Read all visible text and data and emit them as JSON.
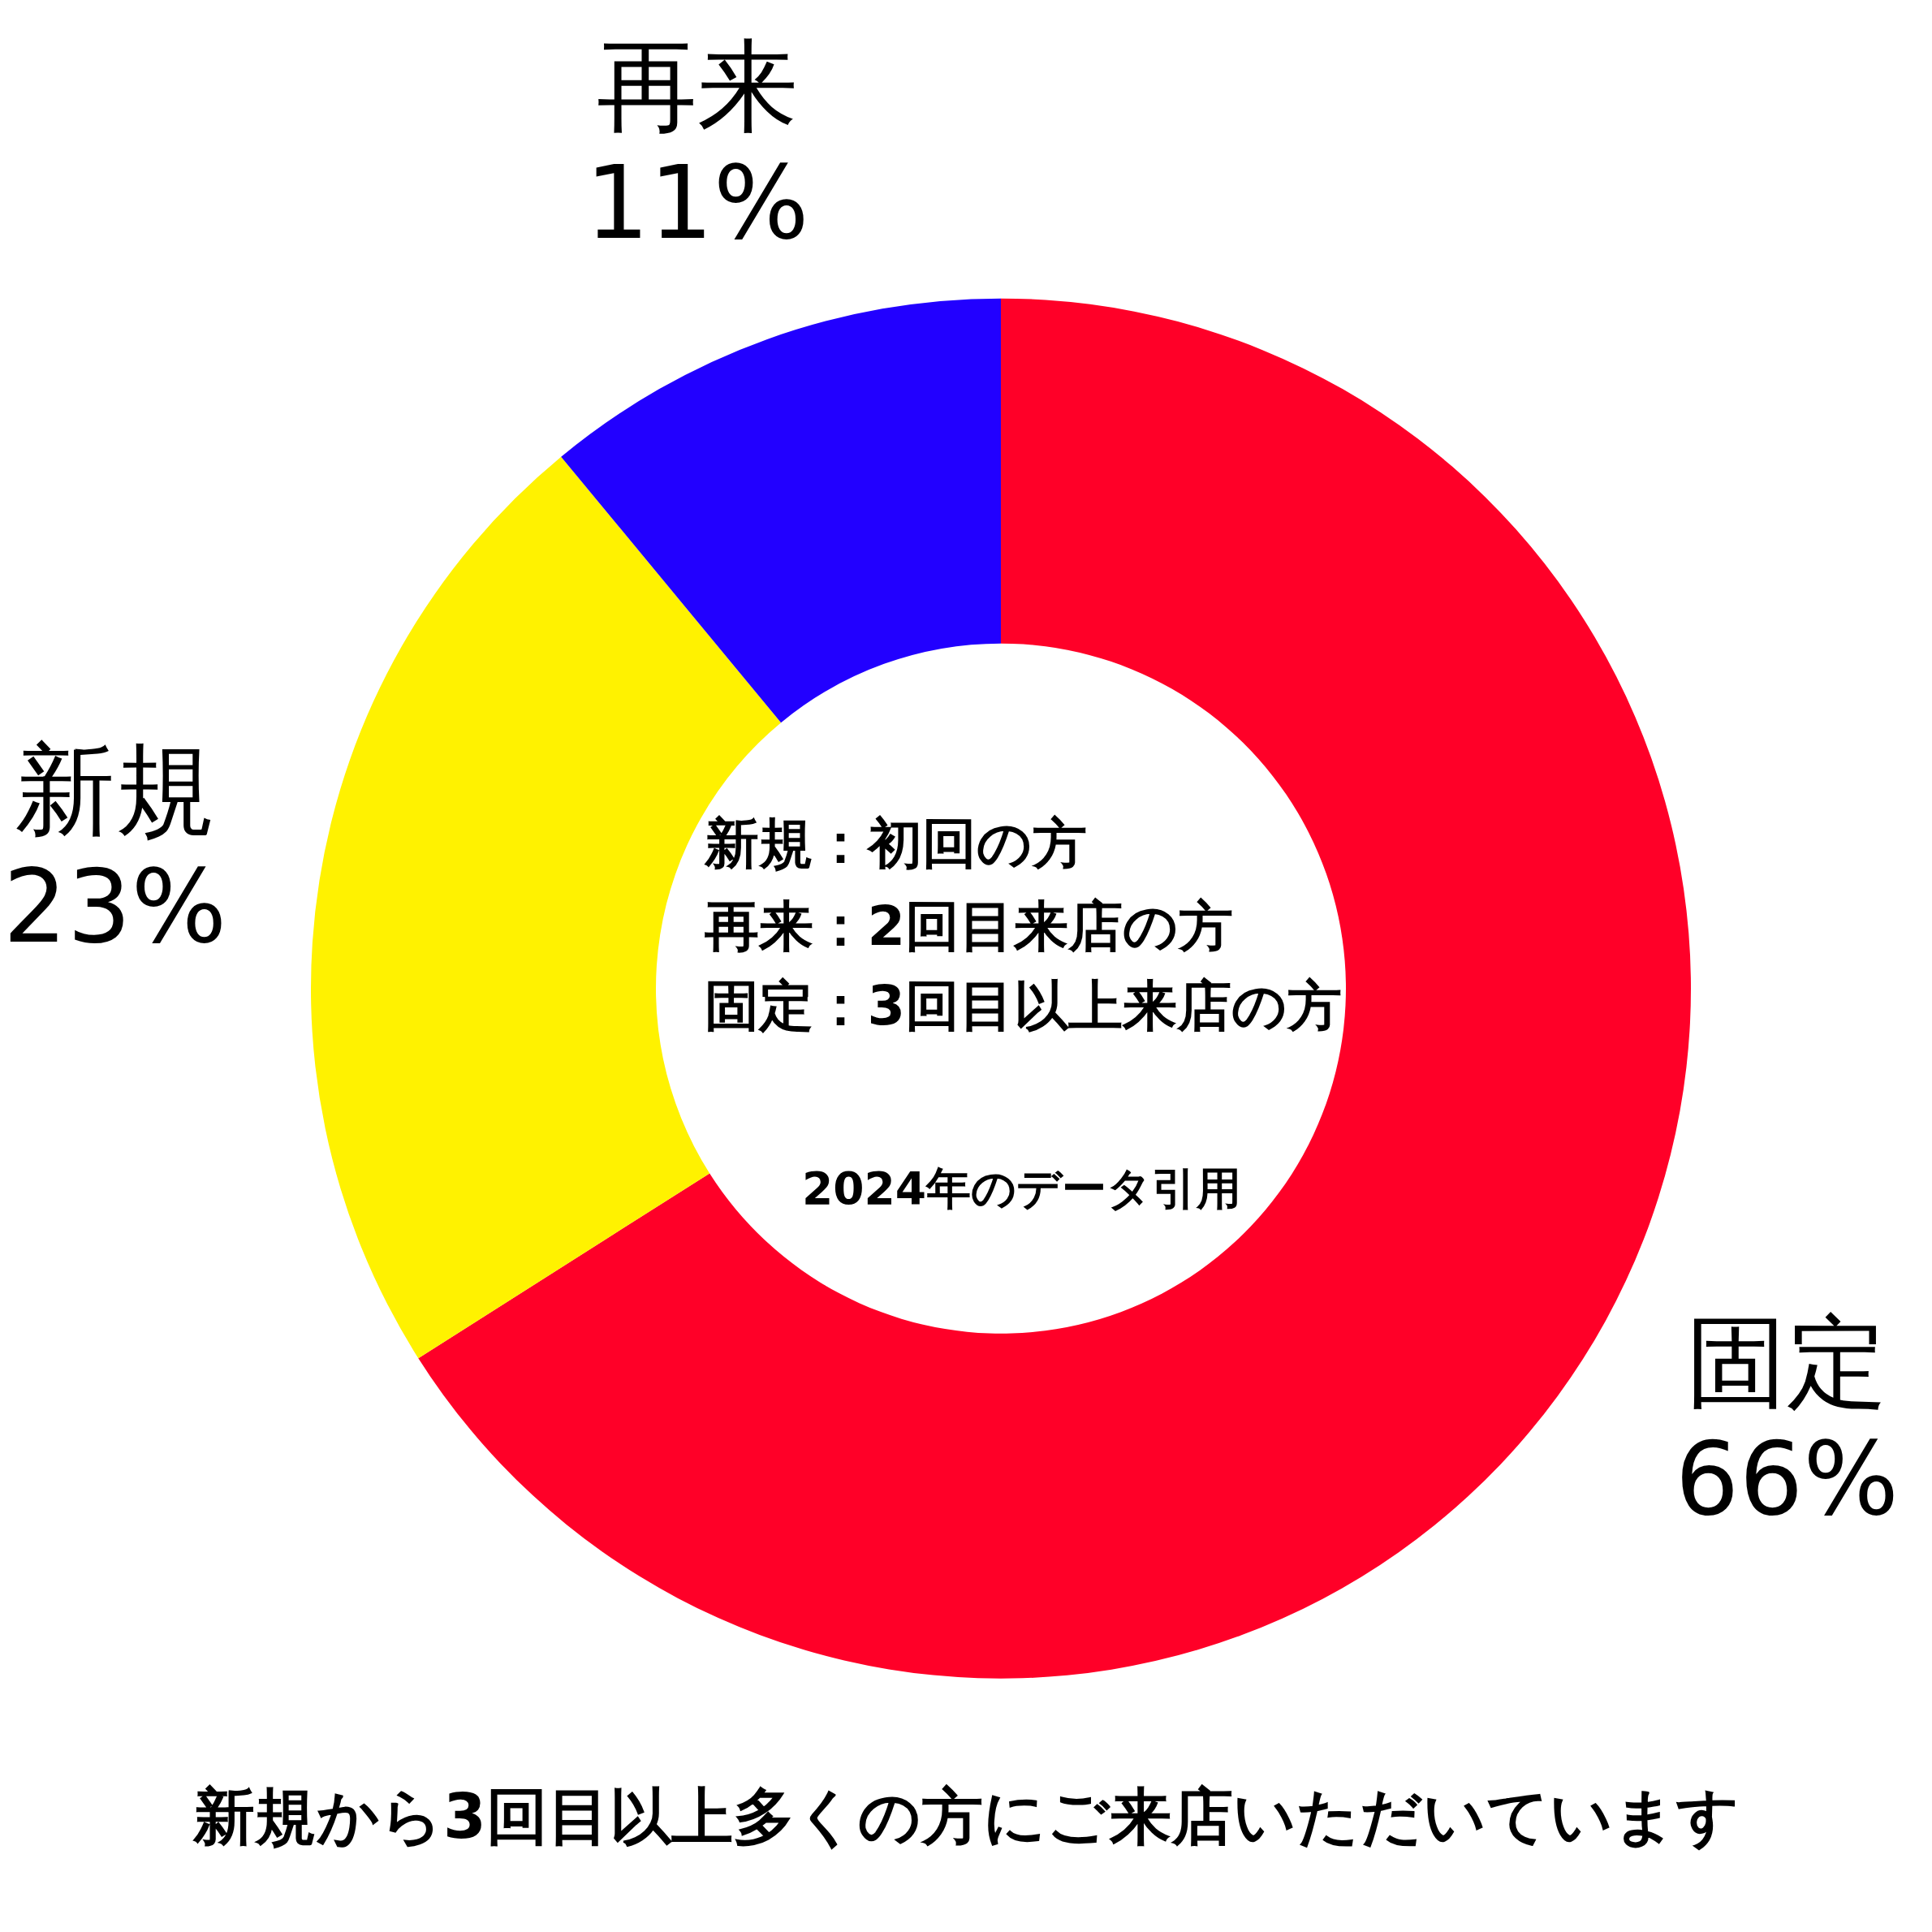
{
  "chart_data": {
    "type": "donut",
    "title": "新規から3回目以上多くの方にご来店いただいています",
    "categories": [
      "固定",
      "新規",
      "再来"
    ],
    "values": [
      66,
      23,
      11
    ],
    "value_labels": [
      "66%",
      "23%",
      "11%"
    ],
    "colors": [
      "#ff0028",
      "#fff200",
      "#2200ff"
    ],
    "annotations": [
      "新規：初回の方",
      "再来：2回目来店の方",
      "固定：3回目以上来店の方",
      "2024年のデータ引用"
    ]
  }
}
